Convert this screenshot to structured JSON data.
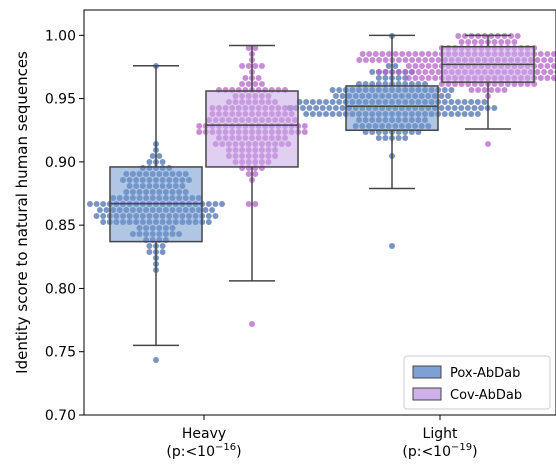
{
  "chart_data": {
    "type": "box-swarm",
    "title": "",
    "xlabel": "",
    "ylabel": "Identity score to natural human sequences",
    "ylim": [
      0.7,
      1.02
    ],
    "yticks": [
      0.7,
      0.75,
      0.8,
      0.85,
      0.9,
      0.95,
      1.0
    ],
    "ytick_labels": [
      "0.70",
      "0.75",
      "0.80",
      "0.85",
      "0.90",
      "0.95",
      "1.00"
    ],
    "grid": false,
    "categories": [
      {
        "key": "heavy",
        "label": "Heavy",
        "sublabel_prefix": "(p:<10",
        "sublabel_exp": "−16",
        "sublabel_suffix": ")"
      },
      {
        "key": "light",
        "label": "Light",
        "sublabel_prefix": "(p:<10",
        "sublabel_exp": "−19",
        "sublabel_suffix": ")"
      }
    ],
    "legend": {
      "placement": "bottom-right",
      "entries": [
        "Pox-AbDab",
        "Cov-AbDab"
      ]
    },
    "series": [
      {
        "name": "Pox-AbDab",
        "box_color": "#6f97d0",
        "point_color": "#4c72b0",
        "boxes": {
          "heavy": {
            "whisker_low": 0.755,
            "q1": 0.837,
            "median": 0.867,
            "q3": 0.896,
            "whisker_high": 0.976
          },
          "light": {
            "whisker_low": 0.879,
            "q1": 0.925,
            "median": 0.944,
            "q3": 0.96,
            "whisker_high": 1.0
          }
        },
        "points": {
          "heavy": {
            "n": 170,
            "center": 0.867,
            "spread": 0.03,
            "min": 0.744,
            "max": 0.976
          },
          "light": {
            "n": 190,
            "center": 0.944,
            "spread": 0.02,
            "min": 0.833,
            "max": 1.0
          }
        }
      },
      {
        "name": "Cov-AbDab",
        "box_color": "#c9a7e8",
        "point_color": "#b566c9",
        "boxes": {
          "heavy": {
            "whisker_low": 0.806,
            "q1": 0.896,
            "median": 0.929,
            "q3": 0.956,
            "whisker_high": 0.992
          },
          "light": {
            "whisker_low": 0.926,
            "q1": 0.963,
            "median": 0.977,
            "q3": 0.991,
            "whisker_high": 1.0
          }
        },
        "points": {
          "heavy": {
            "n": 170,
            "center": 0.929,
            "spread": 0.035,
            "min": 0.77,
            "max": 0.992
          },
          "light": {
            "n": 220,
            "center": 0.977,
            "spread": 0.016,
            "min": 0.913,
            "max": 1.0
          }
        }
      }
    ]
  }
}
